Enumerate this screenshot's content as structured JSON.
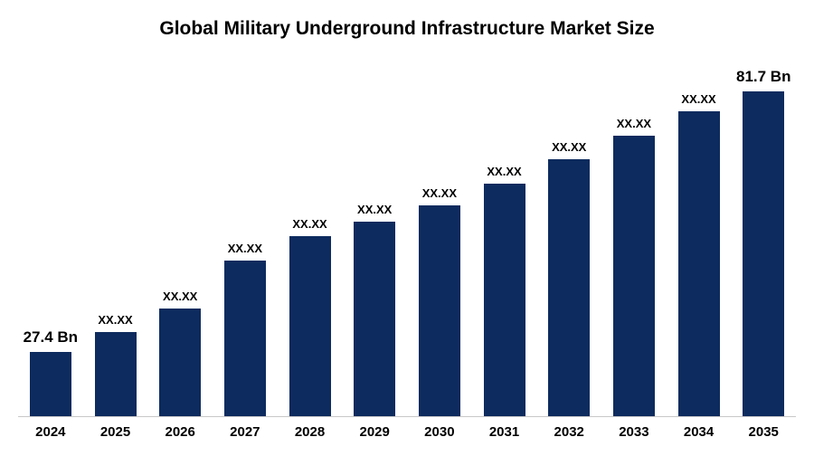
{
  "title": "Global Military Underground Infrastructure Market Size",
  "chart_data": {
    "type": "bar",
    "title": "Global Military Underground Infrastructure Market Size",
    "categories": [
      "2024",
      "2025",
      "2026",
      "2027",
      "2028",
      "2029",
      "2030",
      "2031",
      "2032",
      "2033",
      "2034",
      "2035"
    ],
    "values": [
      27.4,
      31.5,
      36.5,
      46.5,
      51.5,
      54.5,
      58.0,
      62.5,
      67.5,
      72.5,
      77.5,
      81.7
    ],
    "bar_labels": [
      "27.4 Bn",
      "XX.XX",
      "XX.XX",
      "XX.XX",
      "XX.XX",
      "XX.XX",
      "XX.XX",
      "XX.XX",
      "XX.XX",
      "XX.XX",
      "XX.XX",
      "81.7 Bn"
    ],
    "unit": "Bn",
    "xlabel": "",
    "ylabel": "",
    "grid": false,
    "legend": false,
    "bar_color": "#0d2b5e",
    "label_color": "#000000",
    "axis_line_color": "#c8c8c8"
  }
}
